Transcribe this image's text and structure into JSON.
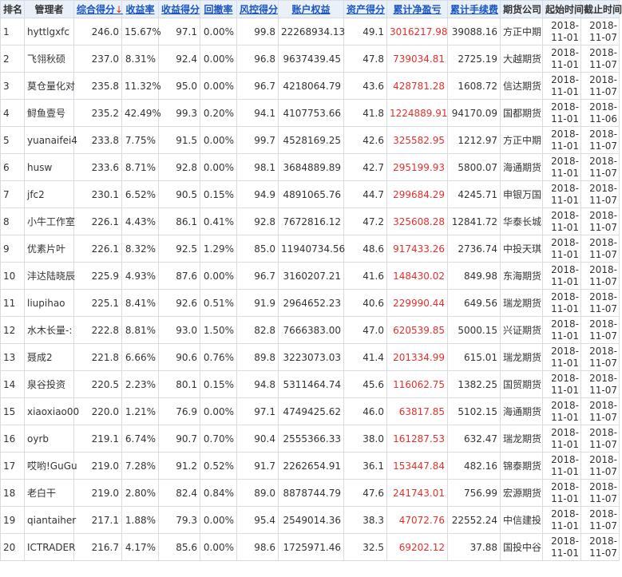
{
  "headers": [
    {
      "label": "排名",
      "sortable": false
    },
    {
      "label": "管理者",
      "sortable": false
    },
    {
      "label": "综合得分",
      "sortable": true,
      "arrow": "↓"
    },
    {
      "label": "收益率",
      "sortable": true
    },
    {
      "label": "收益得分",
      "sortable": true
    },
    {
      "label": "回撤率",
      "sortable": true
    },
    {
      "label": "风控得分",
      "sortable": true
    },
    {
      "label": "账户权益",
      "sortable": true
    },
    {
      "label": "资产得分",
      "sortable": true
    },
    {
      "label": "累计净盈亏",
      "sortable": true
    },
    {
      "label": "累计手续费",
      "sortable": true
    },
    {
      "label": "期货公司",
      "sortable": false
    },
    {
      "label": "起始时间",
      "sortable": false
    },
    {
      "label": "截止时间",
      "sortable": false
    }
  ],
  "rows": [
    [
      "1",
      "hyttlgxfc",
      "246.0",
      "15.67%",
      "97.1",
      "0.00%",
      "99.8",
      "22268934.13",
      "49.1",
      "3016217.98",
      "39088.16",
      "方正中期",
      [
        "2018-",
        "11-01"
      ],
      [
        "2018-",
        "11-07"
      ]
    ],
    [
      "2",
      "飞翎秋硕",
      "237.0",
      "8.31%",
      "92.4",
      "0.00%",
      "96.8",
      "9637439.45",
      "47.8",
      "739034.81",
      "2725.19",
      "大越期货",
      [
        "2018-",
        "11-01"
      ],
      [
        "2018-",
        "11-07"
      ]
    ],
    [
      "3",
      "莫仓量化对",
      "235.8",
      "11.32%",
      "95.0",
      "0.00%",
      "96.7",
      "4218064.79",
      "43.6",
      "428781.28",
      "1608.72",
      "信达期货",
      [
        "2018-",
        "11-01"
      ],
      [
        "2018-",
        "11-07"
      ]
    ],
    [
      "4",
      "鲟鱼壹号",
      "235.2",
      "42.49%",
      "99.3",
      "0.20%",
      "94.1",
      "4107753.66",
      "41.8",
      "1224889.91",
      "94170.09",
      "国都期货",
      [
        "2018-",
        "11-01"
      ],
      [
        "2018-",
        "11-06"
      ]
    ],
    [
      "5",
      "yuanaifei4",
      "233.8",
      "7.75%",
      "91.5",
      "0.00%",
      "99.7",
      "4528169.25",
      "42.6",
      "325582.95",
      "1212.97",
      "方正中期",
      [
        "2018-",
        "11-01"
      ],
      [
        "2018-",
        "11-07"
      ]
    ],
    [
      "6",
      "husw",
      "233.6",
      "8.71%",
      "92.8",
      "0.00%",
      "98.1",
      "3684889.89",
      "42.7",
      "295199.93",
      "5800.07",
      "海通期货",
      [
        "2018-",
        "11-01"
      ],
      [
        "2018-",
        "11-07"
      ]
    ],
    [
      "7",
      "jfc2",
      "230.1",
      "6.52%",
      "90.5",
      "0.15%",
      "94.9",
      "4891065.76",
      "44.7",
      "299684.29",
      "4245.71",
      "申银万国",
      [
        "2018-",
        "11-01"
      ],
      [
        "2018-",
        "11-07"
      ]
    ],
    [
      "8",
      "小牛工作室",
      "226.1",
      "4.43%",
      "86.1",
      "0.41%",
      "92.8",
      "7672816.12",
      "47.2",
      "325608.28",
      "12841.72",
      "华泰长城",
      [
        "2018-",
        "11-01"
      ],
      [
        "2018-",
        "11-07"
      ]
    ],
    [
      "9",
      "优素片叶",
      "226.1",
      "8.32%",
      "92.5",
      "1.29%",
      "85.0",
      "11940734.56",
      "48.6",
      "917433.26",
      "2736.74",
      "中投天琪",
      [
        "2018-",
        "11-01"
      ],
      [
        "2018-",
        "11-07"
      ]
    ],
    [
      "10",
      "沣达陆晓辰",
      "225.9",
      "4.93%",
      "87.6",
      "0.00%",
      "96.7",
      "3160207.21",
      "41.6",
      "148430.02",
      "849.98",
      "东海期货",
      [
        "2018-",
        "11-01"
      ],
      [
        "2018-",
        "11-07"
      ]
    ],
    [
      "11",
      "liupihao",
      "225.1",
      "8.41%",
      "92.6",
      "0.51%",
      "91.9",
      "2964652.23",
      "40.6",
      "229990.44",
      "649.56",
      "瑞龙期货",
      [
        "2018-",
        "11-01"
      ],
      [
        "2018-",
        "11-07"
      ]
    ],
    [
      "12",
      "水木长量-:",
      "222.8",
      "8.81%",
      "93.0",
      "1.50%",
      "82.8",
      "7666383.00",
      "47.0",
      "620539.85",
      "5000.15",
      "兴证期货",
      [
        "2018-",
        "11-01"
      ],
      [
        "2018-",
        "11-07"
      ]
    ],
    [
      "13",
      "聂成2",
      "221.8",
      "6.66%",
      "90.6",
      "0.76%",
      "89.8",
      "3223073.03",
      "41.4",
      "201334.99",
      "615.01",
      "瑞龙期货",
      [
        "2018-",
        "11-01"
      ],
      [
        "2018-",
        "11-07"
      ]
    ],
    [
      "14",
      "泉谷投资",
      "220.5",
      "2.23%",
      "80.1",
      "0.15%",
      "94.8",
      "5311464.74",
      "45.6",
      "116062.75",
      "1382.25",
      "国贸期货",
      [
        "2018-",
        "11-01"
      ],
      [
        "2018-",
        "11-07"
      ]
    ],
    [
      "15",
      "xiaoxiao00",
      "220.0",
      "1.21%",
      "76.9",
      "0.00%",
      "97.1",
      "4749425.62",
      "46.0",
      "63817.85",
      "5102.15",
      "海通期货",
      [
        "2018-",
        "11-01"
      ],
      [
        "2018-",
        "11-07"
      ]
    ],
    [
      "16",
      "oyrb",
      "219.1",
      "6.74%",
      "90.7",
      "0.70%",
      "90.4",
      "2555366.33",
      "38.0",
      "161287.53",
      "632.47",
      "瑞龙期货",
      [
        "2018-",
        "11-01"
      ],
      [
        "2018-",
        "11-07"
      ]
    ],
    [
      "17",
      "哎哟!GuGu",
      "219.0",
      "7.28%",
      "91.2",
      "0.52%",
      "91.7",
      "2262654.91",
      "36.1",
      "153447.84",
      "482.16",
      "锦泰期货",
      [
        "2018-",
        "11-01"
      ],
      [
        "2018-",
        "11-07"
      ]
    ],
    [
      "18",
      "老白干",
      "219.0",
      "2.80%",
      "82.4",
      "0.84%",
      "89.0",
      "8878744.79",
      "47.6",
      "241743.01",
      "756.99",
      "宏源期货",
      [
        "2018-",
        "11-01"
      ],
      [
        "2018-",
        "11-07"
      ]
    ],
    [
      "19",
      "qiantaiher",
      "217.1",
      "1.88%",
      "79.3",
      "0.00%",
      "95.4",
      "2549014.36",
      "38.3",
      "47072.76",
      "22552.24",
      "中信建投",
      [
        "2018-",
        "11-01"
      ],
      [
        "2018-",
        "11-07"
      ]
    ],
    [
      "20",
      "ICTRADER",
      "216.7",
      "4.17%",
      "85.6",
      "0.00%",
      "98.6",
      "1725971.46",
      "32.5",
      "69202.12",
      "37.88",
      "国投中谷",
      [
        "2018-",
        "11-01"
      ],
      [
        "2018-",
        "11-07"
      ]
    ]
  ],
  "colors": {
    "link": "#1a55c2",
    "profit": "#e0312c",
    "header_bg": "#e9f0f8",
    "border": "#d6dde6"
  }
}
